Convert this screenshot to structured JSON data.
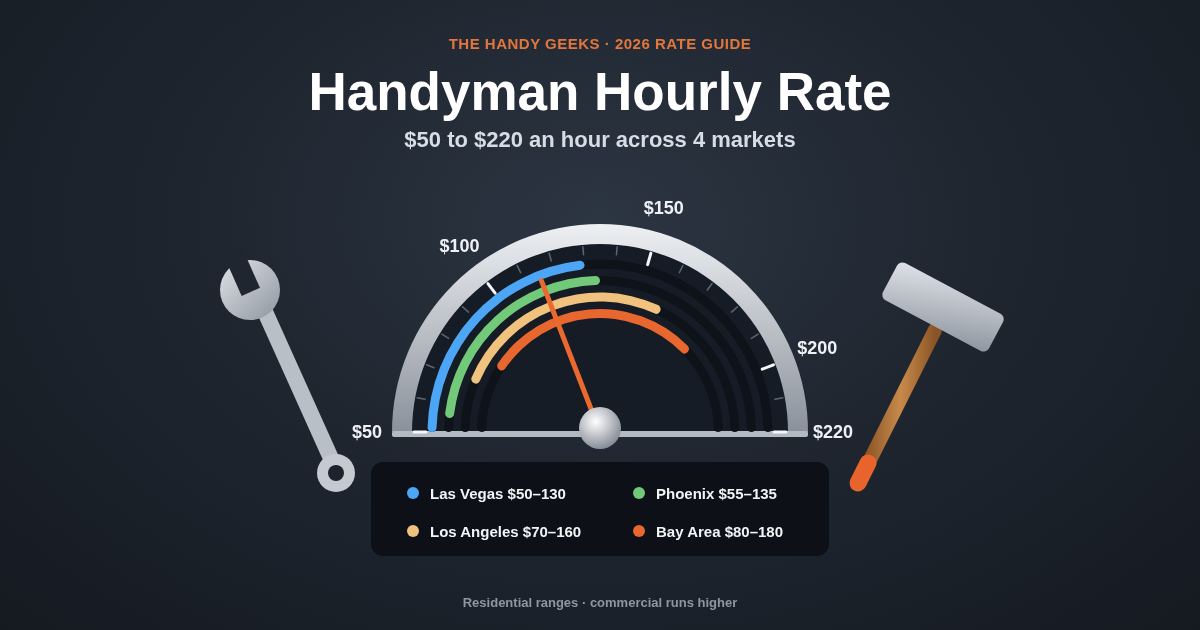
{
  "chart_data": {
    "type": "gauge",
    "header": "THE HANDY GEEKS · 2026 RATE GUIDE",
    "title": "Handyman Hourly Rate",
    "subtitle": "$50 to $220 an hour across 4 markets",
    "note": "Residential ranges · commercial runs higher",
    "series": [
      {
        "name": "Las Vegas $50–130",
        "color": "#4da6f5",
        "values": [
          50,
          130
        ]
      },
      {
        "name": "Phoenix $55–135",
        "color": "#72c97a",
        "values": [
          55,
          135
        ]
      },
      {
        "name": "Los Angeles $70–160",
        "color": "#f0c27e",
        "values": [
          70,
          160
        ]
      },
      {
        "name": "Bay Area $80–180",
        "color": "#e8672f",
        "values": [
          80,
          180
        ]
      }
    ],
    "ylim": [
      50,
      220
    ],
    "yticks": [
      {
        "value": 50,
        "label": "$50"
      },
      {
        "value": 100,
        "label": "$100"
      },
      {
        "value": 150,
        "label": "$150"
      },
      {
        "value": 200,
        "label": "$200"
      },
      {
        "value": 220,
        "label": "$220"
      }
    ],
    "minor_ticks": [
      60,
      70,
      80,
      90,
      110,
      120,
      130,
      140,
      160,
      170,
      180,
      190,
      210
    ],
    "needle": 115
  }
}
